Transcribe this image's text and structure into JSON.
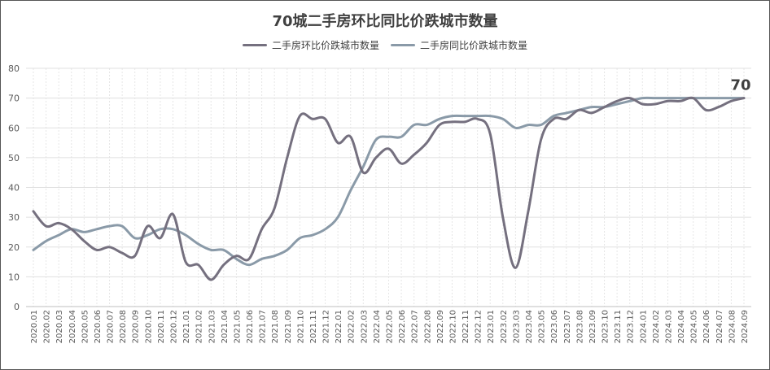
{
  "chart_data": {
    "type": "line",
    "title": "70城二手房环比同比价跌城市数量",
    "ylim": [
      0,
      80
    ],
    "y_ticks": [
      "0",
      "10",
      "20",
      "30",
      "40",
      "50",
      "60",
      "70",
      "80"
    ],
    "grid": true,
    "legend_position": "top-center",
    "end_label": "70",
    "categories": [
      "2020.01",
      "2020.02",
      "2020.03",
      "2020.04",
      "2020.05",
      "2020.06",
      "2020.07",
      "2020.08",
      "2020.09",
      "2020.10",
      "2020.11",
      "2020.12",
      "2021.01",
      "2021.02",
      "2021.03",
      "2021.04",
      "2021.05",
      "2021.06",
      "2021.07",
      "2021.08",
      "2021.09",
      "2021.10",
      "2021.11",
      "2021.12",
      "2022.01",
      "2022.02",
      "2022.03",
      "2022.04",
      "2022.05",
      "2022.06",
      "2022.07",
      "2022.08",
      "2022.09",
      "2022.10",
      "2022.11",
      "2022.12",
      "2023.01",
      "2023.02",
      "2023.03",
      "2023.04",
      "2023.05",
      "2023.06",
      "2023.07",
      "2023.08",
      "2023.09",
      "2023.10",
      "2023.11",
      "2023.12",
      "2024.01",
      "2024.02",
      "2024.03",
      "2024.04",
      "2024.05",
      "2024.06",
      "2024.07",
      "2024.08",
      "2024.09"
    ],
    "series": [
      {
        "name": "二手房环比价跌城市数量",
        "color": "#75707f",
        "values": [
          32,
          27,
          28,
          26,
          22,
          19,
          20,
          18,
          17,
          27,
          23,
          31,
          15,
          14,
          9,
          14,
          17,
          16,
          26,
          33,
          50,
          64,
          63,
          63,
          55,
          57,
          45,
          50,
          53,
          48,
          51,
          55,
          61,
          62,
          62,
          63,
          58,
          30,
          13,
          32,
          56,
          63,
          63,
          66,
          65,
          67,
          69,
          70,
          68,
          68,
          69,
          69,
          70,
          66,
          67,
          69,
          70
        ]
      },
      {
        "name": "二手房同比价跌城市数量",
        "color": "#8a9aa8",
        "values": [
          19,
          22,
          24,
          26,
          25,
          26,
          27,
          27,
          23,
          24,
          26,
          26,
          24,
          21,
          19,
          19,
          16,
          14,
          16,
          17,
          19,
          23,
          24,
          26,
          30,
          39,
          47,
          56,
          57,
          57,
          61,
          61,
          63,
          64,
          64,
          64,
          64,
          63,
          60,
          61,
          61,
          64,
          65,
          66,
          67,
          67,
          68,
          69,
          70,
          70,
          70,
          70,
          70,
          70,
          70,
          70,
          70
        ]
      }
    ]
  }
}
